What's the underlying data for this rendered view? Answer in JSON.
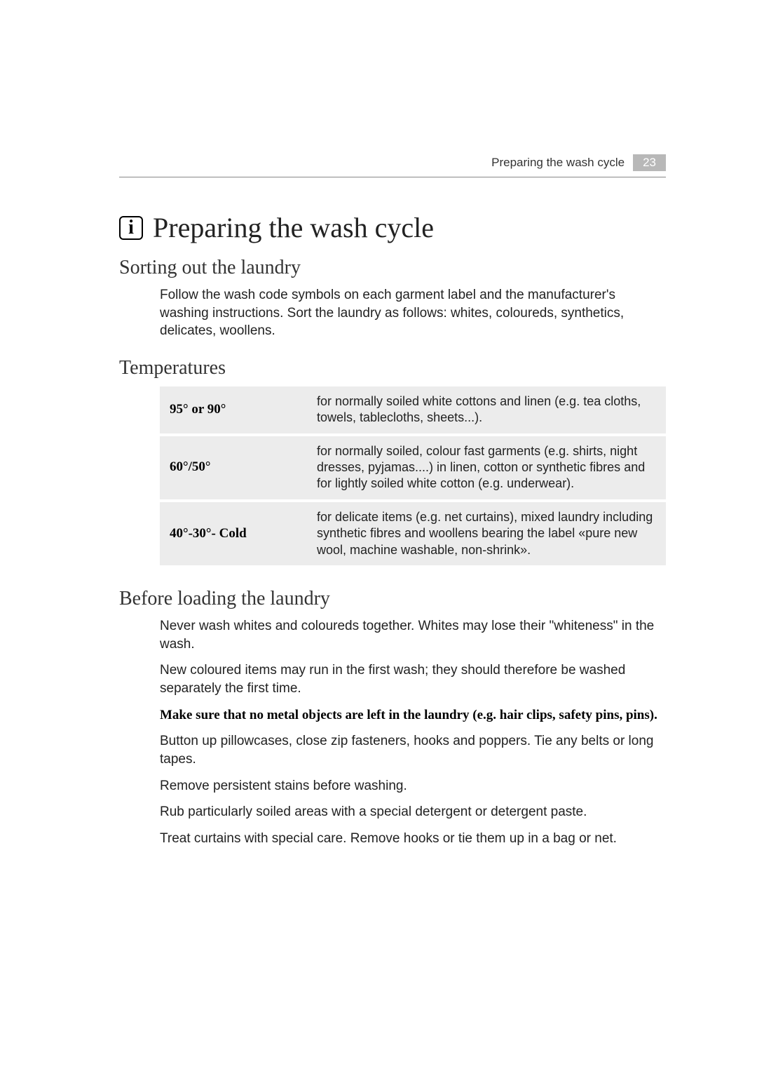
{
  "header": {
    "running_title": "Preparing the wash cycle",
    "page_number": "23"
  },
  "main_title": "Preparing the wash cycle",
  "info_icon_glyph": "i",
  "sections": {
    "sorting": {
      "title": "Sorting out the laundry",
      "body": "Follow the wash code symbols on each garment label and the manufacturer's washing instructions. Sort the laundry as follows: whites, coloureds, synthetics, delicates, woollens."
    },
    "temperatures": {
      "title": "Temperatures",
      "rows": [
        {
          "label": "95° or 90°",
          "desc": "for normally soiled white cottons and linen (e.g. tea cloths, towels, tablecloths, sheets...)."
        },
        {
          "label": "60°/50°",
          "desc": "for normally soiled, colour fast garments (e.g. shirts, night dresses, pyjamas....) in linen, cotton or synthetic fibres and for lightly soiled white cotton (e.g. underwear)."
        },
        {
          "label": "40°-30°- Cold",
          "desc": "for delicate items (e.g. net curtains), mixed laundry including synthetic fibres and woollens bearing the label «pure new wool, machine washable, non-shrink»."
        }
      ]
    },
    "before_loading": {
      "title": "Before loading the laundry",
      "paras": [
        "Never wash whites and coloureds together. Whites may lose their \"whiteness\" in the wash.",
        "New coloured items may run in the first wash; they should therefore be washed separately the first time."
      ],
      "bold_para": "Make sure that no metal objects are left in the laundry (e.g. hair clips, safety pins, pins).",
      "paras2": [
        "Button up pillowcases, close zip fasteners, hooks and poppers. Tie any belts or long tapes.",
        "Remove persistent stains before washing.",
        "Rub particularly soiled areas with a special detergent or detergent paste.",
        "Treat curtains with special care. Remove hooks or tie them up in a bag or net."
      ]
    }
  },
  "colors": {
    "table_bg": "#ececec",
    "page_num_bg": "#b8b8b8",
    "rule": "#888888"
  }
}
